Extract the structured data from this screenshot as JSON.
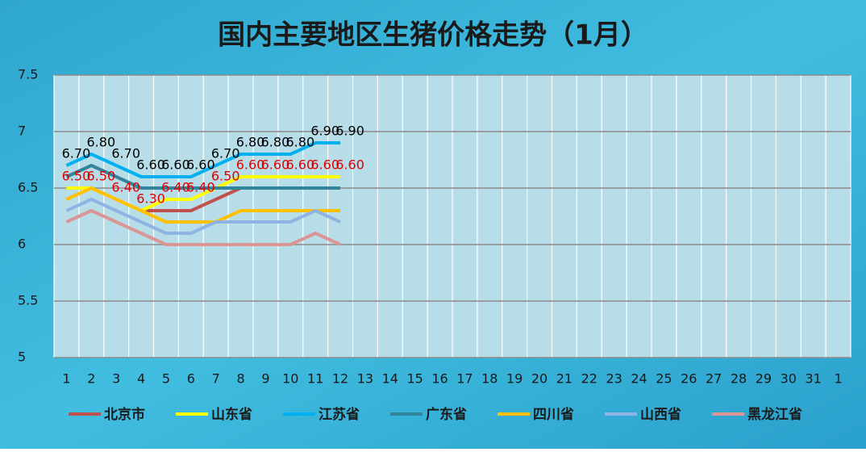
{
  "chart_data": {
    "type": "line",
    "title": "国内主要地区生猪价格走势（1月）",
    "categories": [
      "1",
      "2",
      "3",
      "4",
      "5",
      "6",
      "7",
      "8",
      "9",
      "10",
      "11",
      "12",
      "13",
      "14",
      "15",
      "16",
      "17",
      "18",
      "19",
      "20",
      "21",
      "22",
      "23",
      "24",
      "25",
      "26",
      "27",
      "28",
      "29",
      "30",
      "31",
      "1"
    ],
    "ylim": [
      5,
      7.5
    ],
    "yticks": [
      5,
      5.5,
      6,
      6.5,
      7,
      7.5
    ],
    "grid": true,
    "legend": "bottom",
    "series": [
      {
        "name": "北京市",
        "color": "#c0504d",
        "values": [
          null,
          null,
          null,
          6.3,
          6.3,
          6.3,
          6.4,
          6.5,
          null,
          null,
          null,
          null,
          null,
          null,
          null,
          null,
          null,
          null,
          null,
          null,
          null,
          null,
          null,
          null,
          null,
          null,
          null,
          null,
          null,
          null,
          null,
          null
        ]
      },
      {
        "name": "山东省",
        "color": "#ffff00",
        "label_color": "#e00000",
        "values": [
          6.5,
          6.5,
          6.4,
          6.3,
          6.4,
          6.4,
          6.5,
          6.6,
          6.6,
          6.6,
          6.6,
          6.6,
          null,
          null,
          null,
          null,
          null,
          null,
          null,
          null,
          null,
          null,
          null,
          null,
          null,
          null,
          null,
          null,
          null,
          null,
          null,
          null
        ],
        "value_labels": [
          "6.50",
          "6.50",
          "6.40",
          "6.30",
          "6.40",
          "6.40",
          "6.50",
          "6.60",
          "6.60",
          "6.60",
          "6.60",
          "6.60",
          null,
          null,
          null,
          null,
          null,
          null,
          null,
          null,
          null,
          null,
          null,
          null,
          null,
          null,
          null,
          null,
          null,
          null,
          null,
          null
        ]
      },
      {
        "name": "江苏省",
        "color": "#00b0f0",
        "label_color": "#000000",
        "values": [
          6.7,
          6.8,
          6.7,
          6.6,
          6.6,
          6.6,
          6.7,
          6.8,
          6.8,
          6.8,
          6.9,
          6.9,
          null,
          null,
          null,
          null,
          null,
          null,
          null,
          null,
          null,
          null,
          null,
          null,
          null,
          null,
          null,
          null,
          null,
          null,
          null,
          null
        ],
        "value_labels": [
          "6.70",
          "6.80",
          "6.70",
          "6.60",
          "6.60",
          "6.60",
          "6.70",
          "6.80",
          "6.80",
          "6.80",
          "6.90",
          "6.90",
          null,
          null,
          null,
          null,
          null,
          null,
          null,
          null,
          null,
          null,
          null,
          null,
          null,
          null,
          null,
          null,
          null,
          null,
          null,
          null
        ]
      },
      {
        "name": "广东省",
        "color": "#31849b",
        "values": [
          6.6,
          6.7,
          6.6,
          6.5,
          6.5,
          6.5,
          6.5,
          6.5,
          6.5,
          6.5,
          6.5,
          6.5,
          null,
          null,
          null,
          null,
          null,
          null,
          null,
          null,
          null,
          null,
          null,
          null,
          null,
          null,
          null,
          null,
          null,
          null,
          null,
          null
        ]
      },
      {
        "name": "四川省",
        "color": "#ffc000",
        "values": [
          6.4,
          6.5,
          6.4,
          6.3,
          6.2,
          6.2,
          6.2,
          6.3,
          6.3,
          6.3,
          6.3,
          6.3,
          null,
          null,
          null,
          null,
          null,
          null,
          null,
          null,
          null,
          null,
          null,
          null,
          null,
          null,
          null,
          null,
          null,
          null,
          null,
          null
        ]
      },
      {
        "name": "山西省",
        "color": "#8eb4e3",
        "values": [
          6.3,
          6.4,
          6.3,
          6.2,
          6.1,
          6.1,
          6.2,
          6.2,
          6.2,
          6.2,
          6.3,
          6.2,
          null,
          null,
          null,
          null,
          null,
          null,
          null,
          null,
          null,
          null,
          null,
          null,
          null,
          null,
          null,
          null,
          null,
          null,
          null,
          null
        ]
      },
      {
        "name": "黑龙江省",
        "color": "#d99694",
        "values": [
          6.2,
          6.3,
          6.2,
          6.1,
          6.0,
          6.0,
          6.0,
          6.0,
          6.0,
          6.0,
          6.1,
          6.0,
          null,
          null,
          null,
          null,
          null,
          null,
          null,
          null,
          null,
          null,
          null,
          null,
          null,
          null,
          null,
          null,
          null,
          null,
          null,
          null
        ]
      }
    ]
  }
}
